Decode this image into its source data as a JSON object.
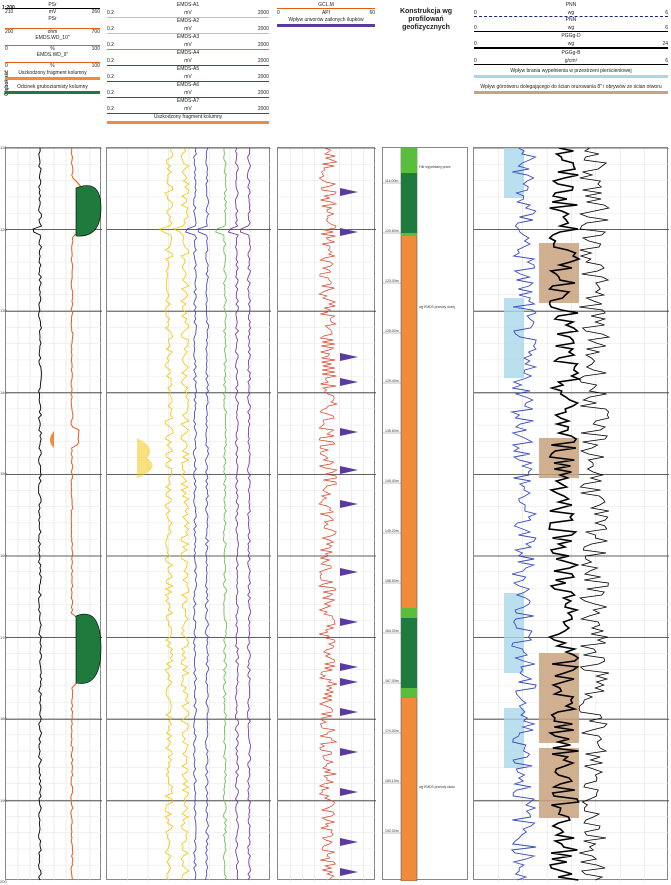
{
  "scale": "1:200",
  "depth_label": "Głębokość",
  "depth_ticks": [
    "110",
    "120",
    "130",
    "140",
    "150",
    "160",
    "170",
    "180",
    "190",
    "200"
  ],
  "track1": {
    "curves": [
      {
        "name": "PSr",
        "min": "210",
        "unit": "",
        "max": "260",
        "color": "#000000"
      },
      {
        "name": "PSr",
        "min": "200",
        "unit": "ohm",
        "max": "700",
        "color": "#e65c1a"
      },
      {
        "name": "EMDS.WD_10\"",
        "min": "0",
        "unit": "%",
        "max": "100",
        "color": "#e65c1a"
      },
      {
        "name": "EMDS.WD_9\"",
        "min": "0",
        "unit": "%",
        "max": "100",
        "color": "#e65c1a"
      }
    ],
    "units": [
      "mV",
      "ohm"
    ],
    "fill_labels": [
      {
        "label": "Uszkodzony fragment kolumny",
        "color": "#f08a3c"
      },
      {
        "label": "Odcinek gruboziarnisty kolumny",
        "color": "#1f7a3d"
      }
    ]
  },
  "track2": {
    "curves": [
      {
        "name": "EMDS-A1",
        "color": "#f5c400"
      },
      {
        "name": "EMDS-A2",
        "color": "#f5c400"
      },
      {
        "name": "EMDS-A3",
        "color": "#5bbd3c"
      },
      {
        "name": "EMDS-A4",
        "color": "#3a3ac0"
      },
      {
        "name": "EMDS-A5",
        "color": "#3a3ac0"
      },
      {
        "name": "EMDS-A6",
        "color": "#6a2a9a"
      },
      {
        "name": "EMDS-A7",
        "color": "#6a2a9a"
      }
    ],
    "min": "0.2",
    "unit": "mV",
    "max": "2000",
    "fill_label": "Uszkodzony fragment kolumny"
  },
  "track3": {
    "curve": "GCL.M",
    "min": "0",
    "unit": "API",
    "max": "60",
    "fill_label": "Wpływ urworów zailonych ilupków"
  },
  "track4": {
    "title": "Konstrukcja wg profilowań geofizycznych",
    "depth_marks": [
      "114.00m",
      "120.60m",
      "123.00m",
      "125.00m",
      "129.40m",
      "135.60m",
      "145.40m",
      "149.20m",
      "158.50m",
      "164.00m",
      "167.00m",
      "174.00m",
      "183.10m",
      "192.00m"
    ],
    "notes": [
      "Filtr wypełniany przeciwnego  długość: 120m do ściany wyłożenia (tuż przy ścianie otworu)",
      "wg EMDS przerwy dużej grubości ścianek",
      "wg EMDS przerwy  około 50 % w stosunku do wartości referencyjnych"
    ]
  },
  "track5": {
    "curves": [
      {
        "name": "PNN",
        "min": "0",
        "unit": "wg",
        "max": "6",
        "color": "#1a237e"
      },
      {
        "name": "PNN",
        "min": "0",
        "unit": "wg",
        "max": "6",
        "color": "#000000"
      },
      {
        "name": "PGGg-D",
        "min": "0",
        "unit": "wg",
        "max": "24",
        "color": "#000000"
      },
      {
        "name": "PGGg-B",
        "min": "0",
        "unit": "g/cm³",
        "max": "6",
        "color": "#000000"
      }
    ],
    "units_row": [
      "0",
      "g/cm³",
      "6"
    ],
    "fill_labels": [
      {
        "label": "Wpływ brania wypełnienia w przestrzeni pierścieniowej",
        "color": "#a9d7ea"
      },
      {
        "label": "Wpływ górotworu dolegającego do ścian orurowania 8\" i obrywów ze ścian otworu",
        "color": "#c9a27e"
      }
    ]
  }
}
